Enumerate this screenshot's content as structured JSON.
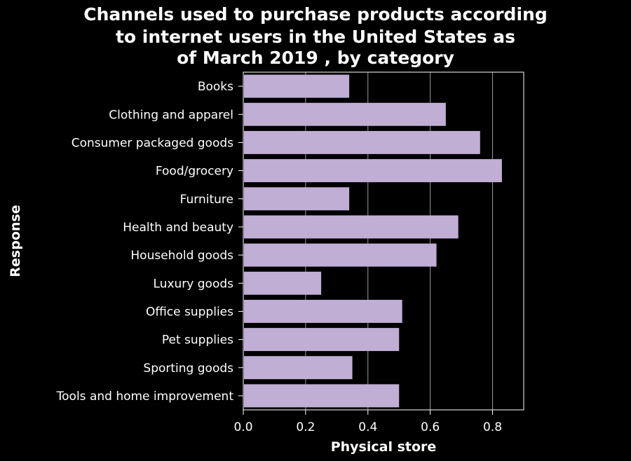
{
  "chart_data": {
    "type": "bar",
    "orientation": "horizontal",
    "title_lines": [
      "Channels used to purchase products according",
      "to internet users in the United States as",
      "of March 2019 , by category"
    ],
    "xlabel": "Physical store",
    "ylabel": "Response",
    "xlim": [
      0,
      0.9
    ],
    "xticks": [
      0.0,
      0.2,
      0.4,
      0.6,
      0.8
    ],
    "xtick_labels": [
      "0.0",
      "0.2",
      "0.4",
      "0.6",
      "0.8"
    ],
    "grid": true,
    "bar_color": "#c1aed4",
    "categories": [
      "Books",
      "Clothing and apparel",
      "Consumer packaged goods",
      "Food/grocery",
      "Furniture",
      "Health and beauty",
      "Household goods",
      "Luxury goods",
      "Office supplies",
      "Pet supplies",
      "Sporting goods",
      "Tools and home improvement"
    ],
    "values": [
      0.34,
      0.65,
      0.76,
      0.83,
      0.34,
      0.69,
      0.62,
      0.25,
      0.51,
      0.5,
      0.35,
      0.5
    ]
  }
}
